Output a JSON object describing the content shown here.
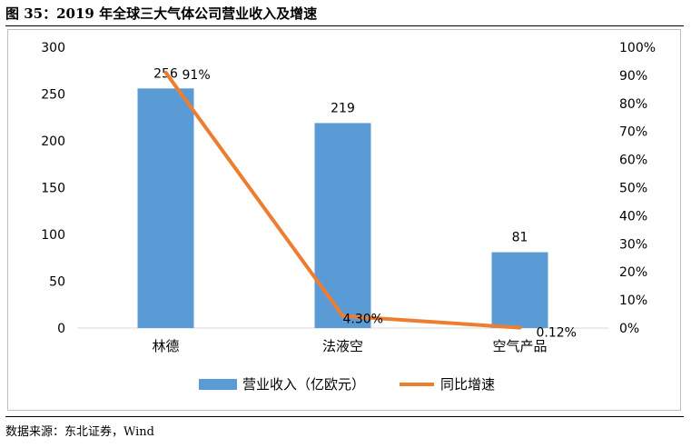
{
  "figure_title": "图 35：2019 年全球三大气体公司营业收入及增速",
  "source": "数据来源：东北证券，Wind",
  "colors": {
    "bar": "#5b9bd5",
    "line": "#ed7d31",
    "border": "#bfbfbf"
  },
  "chart_data": {
    "type": "bar",
    "categories": [
      "林德",
      "法液空",
      "空气产品"
    ],
    "series": [
      {
        "name": "营业收入（亿欧元）",
        "type": "bar",
        "axis": "left",
        "values": [
          256,
          219,
          81
        ],
        "labels": [
          "256",
          "219",
          "81"
        ]
      },
      {
        "name": "同比增速",
        "type": "line",
        "axis": "right",
        "values": [
          91,
          4.3,
          0.12
        ],
        "labels": [
          "91%",
          "4.30%",
          "0.12%"
        ]
      }
    ],
    "y_left": {
      "min": 0,
      "max": 300,
      "ticks": [
        "0",
        "50",
        "100",
        "150",
        "200",
        "250",
        "300"
      ]
    },
    "y_right": {
      "min": 0,
      "max": 100,
      "ticks": [
        "0%",
        "10%",
        "20%",
        "30%",
        "40%",
        "50%",
        "60%",
        "70%",
        "80%",
        "90%",
        "100%"
      ]
    },
    "grid": false,
    "legend": "bottom"
  }
}
